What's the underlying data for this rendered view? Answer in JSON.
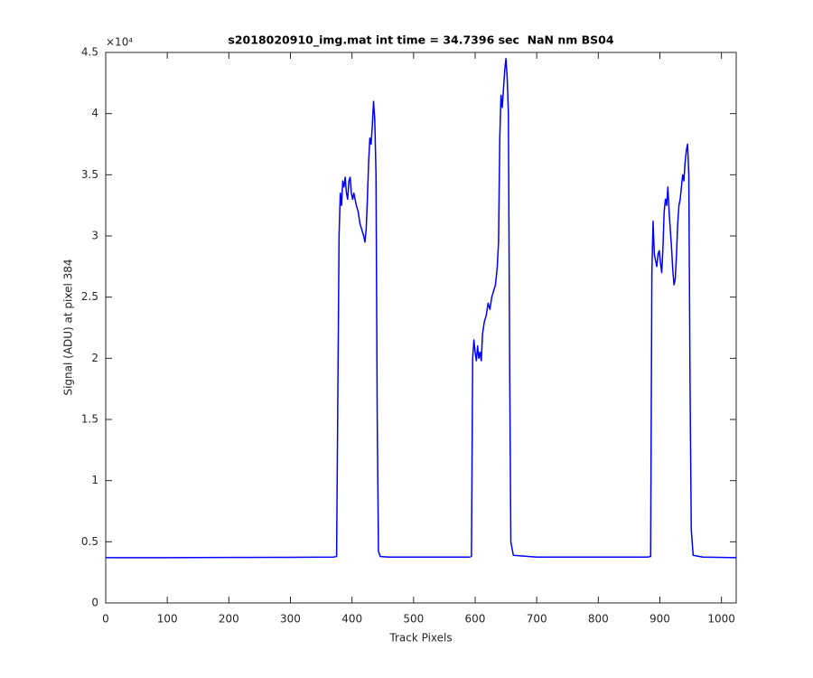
{
  "chart_data": {
    "type": "line",
    "title": "s2018020910_img.mat int time = 34.7396 sec  NaN nm BS04",
    "x_label": "Track Pixels",
    "y_label": "Signal (ADU) at pixel 384",
    "y_multiplier": "×10⁴",
    "xlim": [
      0,
      1024
    ],
    "xticks": [
      0,
      100,
      200,
      300,
      400,
      500,
      600,
      700,
      800,
      900,
      1000
    ],
    "ylim": [
      0,
      4.5
    ],
    "yticks": [
      0,
      0.5,
      1,
      1.5,
      2,
      2.5,
      3,
      3.5,
      4,
      4.5
    ],
    "grid": false,
    "x": [
      0,
      100,
      200,
      300,
      370,
      375,
      379,
      381,
      383,
      385,
      387,
      389,
      391,
      393,
      395,
      397,
      399,
      401,
      403,
      405,
      407,
      410,
      413,
      416,
      419,
      421,
      423,
      425,
      427,
      429,
      431,
      433,
      435,
      437,
      439,
      441,
      443,
      446,
      460,
      590,
      594,
      596,
      598,
      600,
      602,
      604,
      606,
      608,
      610,
      612,
      615,
      618,
      621,
      624,
      627,
      630,
      633,
      636,
      638,
      640,
      642,
      644,
      646,
      648,
      650,
      652,
      654,
      656,
      658,
      662,
      700,
      880,
      885,
      887,
      889,
      891,
      893,
      895,
      897,
      899,
      901,
      903,
      905,
      907,
      909,
      911,
      913,
      915,
      917,
      919,
      921,
      923,
      925,
      927,
      929,
      931,
      933,
      935,
      937,
      939,
      941,
      943,
      945,
      947,
      949,
      951,
      954,
      970,
      1024
    ],
    "series": [
      {
        "name": "signal",
        "color": "#0000ff",
        "values": [
          0.37,
          0.37,
          0.372,
          0.373,
          0.375,
          0.38,
          3.0,
          3.35,
          3.25,
          3.45,
          3.4,
          3.48,
          3.35,
          3.3,
          3.45,
          3.48,
          3.35,
          3.3,
          3.35,
          3.3,
          3.25,
          3.2,
          3.1,
          3.05,
          3.0,
          2.95,
          3.05,
          3.3,
          3.6,
          3.8,
          3.75,
          3.9,
          4.1,
          3.95,
          3.5,
          1.5,
          0.42,
          0.38,
          0.375,
          0.375,
          0.38,
          2.0,
          2.15,
          2.05,
          1.98,
          2.1,
          2.0,
          2.05,
          1.98,
          2.2,
          2.3,
          2.35,
          2.45,
          2.4,
          2.5,
          2.55,
          2.6,
          2.75,
          2.95,
          3.8,
          4.15,
          4.05,
          4.2,
          4.35,
          4.45,
          4.3,
          4.0,
          2.0,
          0.5,
          0.39,
          0.375,
          0.375,
          0.38,
          2.7,
          3.12,
          2.85,
          2.8,
          2.75,
          2.85,
          2.88,
          2.78,
          2.7,
          2.9,
          3.2,
          3.3,
          3.25,
          3.4,
          3.2,
          3.05,
          2.9,
          2.72,
          2.6,
          2.65,
          2.85,
          3.1,
          3.25,
          3.3,
          3.4,
          3.5,
          3.45,
          3.6,
          3.7,
          3.75,
          3.5,
          1.8,
          0.6,
          0.39,
          0.375,
          0.37
        ]
      }
    ]
  }
}
